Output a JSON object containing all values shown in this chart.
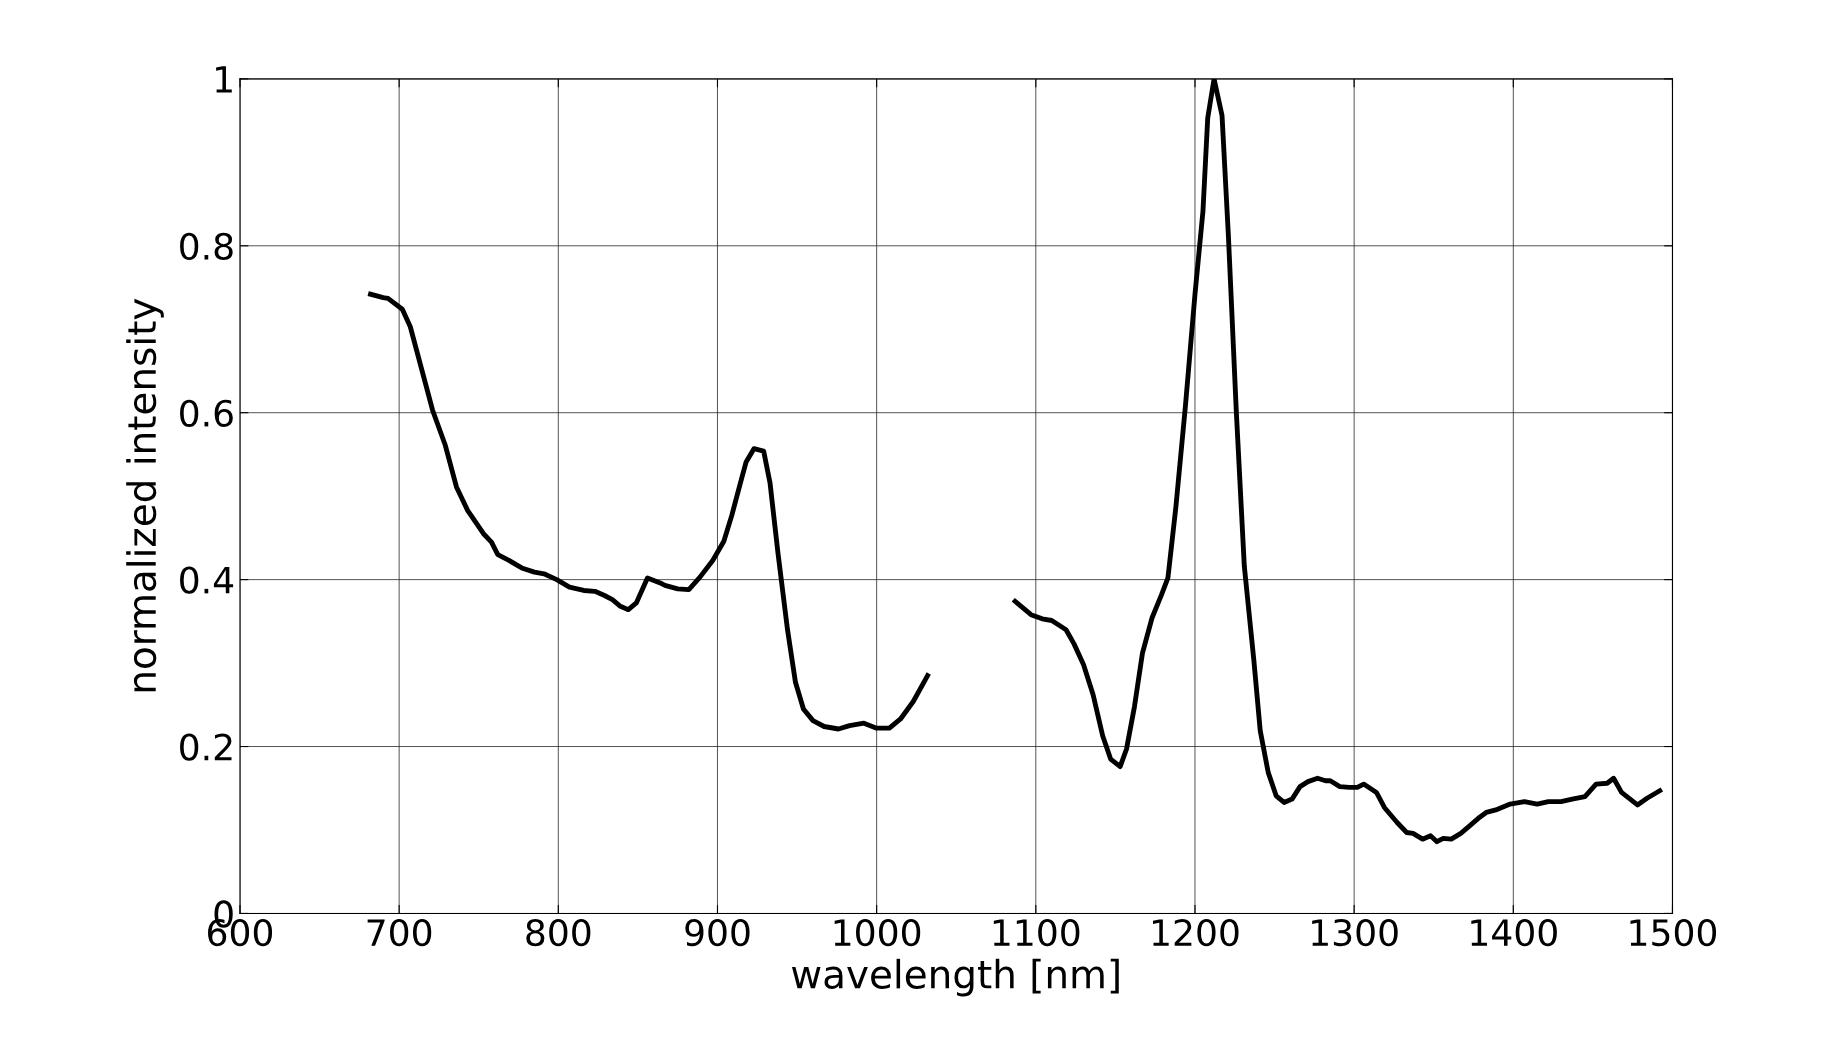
{
  "chart_data": {
    "type": "line",
    "xlabel": "wavelength [nm]",
    "ylabel": "normalized intensity",
    "xlim": [
      600,
      1500
    ],
    "xticks": [
      600,
      700,
      800,
      900,
      1000,
      1100,
      1200,
      1300,
      1400,
      1500
    ],
    "ylim": [
      0,
      1
    ],
    "yticks": [
      0,
      0.2,
      0.4,
      0.6,
      0.8,
      1
    ],
    "grid": true,
    "marker": "none",
    "line_style": "solid",
    "series": [
      {
        "color": "#000000",
        "x": [
          682,
          690,
          693,
          702,
          707,
          714,
          721,
          729,
          736,
          743,
          753,
          758,
          762,
          769,
          777,
          785,
          791,
          799,
          807,
          816,
          823,
          829,
          834,
          839,
          844,
          849,
          856,
          864,
          867,
          875,
          882,
          889,
          897,
          904,
          909,
          914,
          918,
          923,
          929,
          933,
          938,
          944,
          949,
          954,
          960,
          967,
          976,
          983,
          992,
          1000,
          1008,
          1015,
          1023,
          1032,
          1060,
          1087,
          1097,
          1104,
          1110,
          1119,
          1124,
          1130,
          1136,
          1142,
          1147,
          1153,
          1157,
          1162,
          1167,
          1173,
          1179,
          1183,
          1188,
          1194,
          1200,
          1205,
          1208,
          1212,
          1217,
          1221,
          1226,
          1231,
          1237,
          1241,
          1246,
          1251,
          1256,
          1261,
          1266,
          1271,
          1277,
          1282,
          1285,
          1291,
          1297,
          1302,
          1306,
          1314,
          1319,
          1327,
          1333,
          1337,
          1343,
          1348,
          1352,
          1356,
          1361,
          1367,
          1372,
          1378,
          1383,
          1389,
          1398,
          1407,
          1415,
          1422,
          1430,
          1437,
          1445,
          1452,
          1459,
          1463,
          1468,
          1478,
          1484,
          1492
        ],
        "values": [
          0.742,
          0.738,
          0.737,
          0.724,
          0.703,
          0.653,
          0.603,
          0.561,
          0.511,
          0.483,
          0.455,
          0.445,
          0.43,
          0.423,
          0.414,
          0.409,
          0.407,
          0.4,
          0.391,
          0.387,
          0.386,
          0.381,
          0.376,
          0.368,
          0.364,
          0.372,
          0.402,
          0.396,
          0.393,
          0.389,
          0.388,
          0.403,
          0.423,
          0.446,
          0.477,
          0.513,
          0.541,
          0.557,
          0.554,
          0.516,
          0.432,
          0.34,
          0.277,
          0.245,
          0.231,
          0.224,
          0.221,
          0.225,
          0.228,
          0.222,
          0.222,
          0.233,
          0.254,
          0.285,
          null,
          0.374,
          0.358,
          0.353,
          0.351,
          0.34,
          0.323,
          0.298,
          0.262,
          0.213,
          0.185,
          0.176,
          0.197,
          0.248,
          0.312,
          0.354,
          0.382,
          0.402,
          0.487,
          0.608,
          0.742,
          0.841,
          0.953,
          1.0,
          0.956,
          0.812,
          0.6,
          0.416,
          0.303,
          0.219,
          0.169,
          0.141,
          0.133,
          0.137,
          0.152,
          0.158,
          0.162,
          0.159,
          0.159,
          0.152,
          0.151,
          0.151,
          0.155,
          0.145,
          0.127,
          0.109,
          0.097,
          0.096,
          0.089,
          0.093,
          0.086,
          0.09,
          0.089,
          0.096,
          0.104,
          0.114,
          0.121,
          0.124,
          0.131,
          0.134,
          0.131,
          0.134,
          0.134,
          0.137,
          0.14,
          0.155,
          0.156,
          0.162,
          0.145,
          0.13,
          0.138,
          0.147
        ]
      }
    ]
  }
}
